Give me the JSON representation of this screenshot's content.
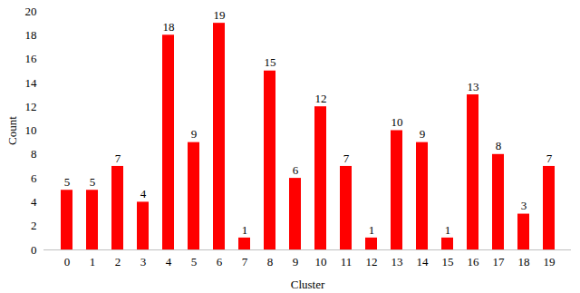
{
  "chart_data": {
    "type": "bar",
    "x_label": "Cluster",
    "y_label": "Count",
    "categories": [
      "0",
      "1",
      "2",
      "3",
      "4",
      "5",
      "6",
      "7",
      "8",
      "9",
      "10",
      "11",
      "12",
      "13",
      "14",
      "15",
      "16",
      "17",
      "18",
      "19"
    ],
    "values": [
      5,
      5,
      7,
      4,
      18,
      9,
      19,
      1,
      15,
      6,
      12,
      7,
      1,
      10,
      9,
      1,
      13,
      8,
      3,
      7
    ],
    "color": "#ff0000",
    "ylim": [
      0,
      20
    ],
    "yticks": [
      0,
      2,
      4,
      6,
      8,
      10,
      12,
      14,
      16,
      18,
      20
    ],
    "grid": false,
    "data_labels": true
  }
}
